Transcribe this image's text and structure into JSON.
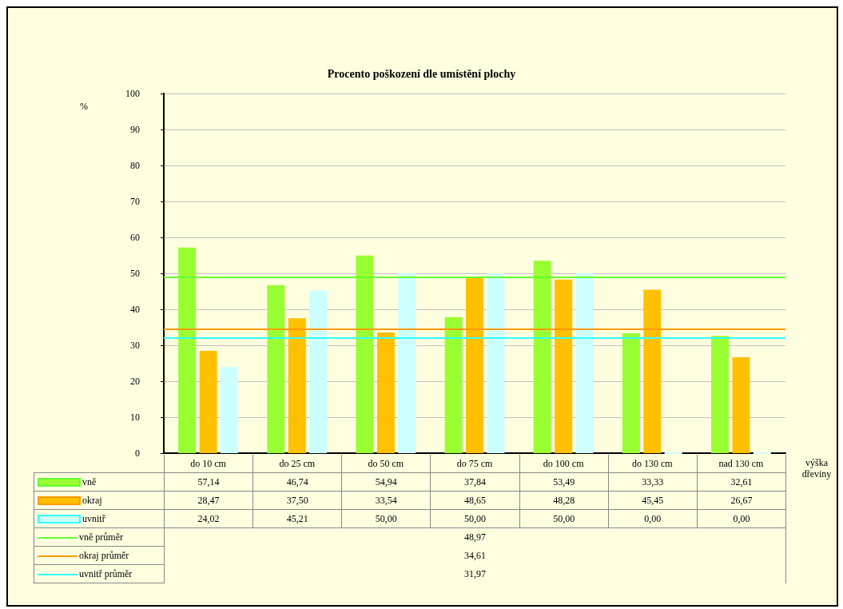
{
  "chart_data": {
    "type": "bar",
    "title": "Procento poškození dle umístění plochy",
    "ylabel": "%",
    "xlabel": "výška dřeviny",
    "categories": [
      "do 10 cm",
      "do 25 cm",
      "do 50 cm",
      "do 75 cm",
      "do 100 cm",
      "do 130 cm",
      "nad 130 cm"
    ],
    "series": [
      {
        "name": "vně",
        "color": "#99ff33",
        "values": [
          57.14,
          46.74,
          54.94,
          37.84,
          53.49,
          33.33,
          32.61
        ],
        "value_labels": [
          "57,14",
          "46,74",
          "54,94",
          "37,84",
          "53,49",
          "33,33",
          "32,61"
        ]
      },
      {
        "name": "okraj",
        "color": "#ffc000",
        "values": [
          28.47,
          37.5,
          33.54,
          48.65,
          48.28,
          45.45,
          26.67
        ],
        "value_labels": [
          "28,47",
          "37,50",
          "33,54",
          "48,65",
          "48,28",
          "45,45",
          "26,67"
        ]
      },
      {
        "name": "uvnitř",
        "color": "#ccffff",
        "values": [
          24.02,
          45.21,
          50,
          50,
          50,
          0,
          0
        ],
        "value_labels": [
          "24,02",
          "45,21",
          "50,00",
          "50,00",
          "50,00",
          "0,00",
          "0,00"
        ]
      }
    ],
    "ref_lines": [
      {
        "axis": "y",
        "value": 48.97,
        "label": "vně průměr",
        "color": "#66ff33"
      },
      {
        "axis": "y",
        "value": 34.61,
        "label": "okraj průměr",
        "color": "#ff9900"
      },
      {
        "axis": "y",
        "value": 31.97,
        "label": "uvnitř průměr",
        "color": "#33ffff"
      }
    ],
    "annotations": [
      "48,97",
      "34,61",
      "31,97"
    ],
    "ylim": [
      0,
      100
    ],
    "yticks": [
      0,
      10,
      20,
      30,
      40,
      50,
      60,
      70,
      80,
      90,
      100
    ],
    "grid": "y",
    "legend": "bottom left"
  }
}
